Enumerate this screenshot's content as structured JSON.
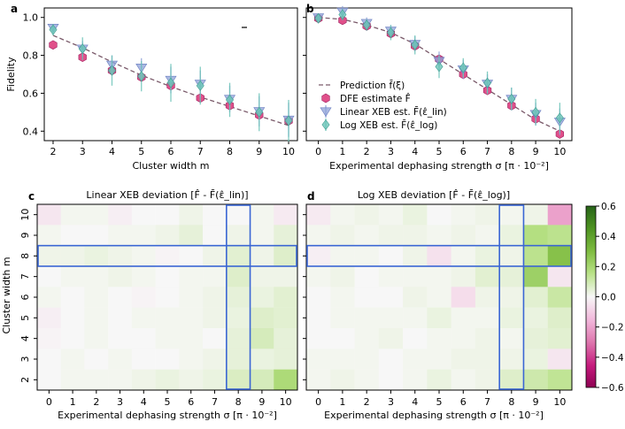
{
  "chart_data": [
    {
      "panel": "a",
      "type": "scatter",
      "xlabel": "Cluster width m",
      "ylabel": "Fidelity",
      "xticks": [
        "2",
        "3",
        "4",
        "5",
        "6",
        "7",
        "8",
        "9",
        "10"
      ],
      "yticks": [
        "0.4",
        "0.6",
        "0.8",
        "1.0"
      ],
      "xlim": [
        1.7,
        10.3
      ],
      "ylim": [
        0.35,
        1.05
      ],
      "x": [
        2,
        3,
        4,
        5,
        6,
        7,
        8,
        9,
        10
      ],
      "series": [
        {
          "name": "Prediction f̄(ξ)",
          "kind": "line",
          "values": [
            0.905,
            0.84,
            0.765,
            0.695,
            0.635,
            0.58,
            0.53,
            0.48,
            0.43
          ],
          "color": "#7a5a6a"
        },
        {
          "name": "DFE estimate F̂",
          "kind": "hexagon",
          "values": [
            0.855,
            0.79,
            0.72,
            0.685,
            0.64,
            0.575,
            0.535,
            0.485,
            0.455
          ],
          "color": "#e0508a"
        },
        {
          "name": "Linear XEB est. F̄(ε̂_lin)",
          "kind": "triangle",
          "values": [
            0.945,
            0.835,
            0.75,
            0.735,
            0.67,
            0.65,
            0.57,
            0.505,
            0.46
          ],
          "err": [
            0.02,
            0.04,
            0.05,
            0.05,
            0.07,
            0.07,
            0.07,
            0.08,
            0.09
          ],
          "color": "#8ea2d8"
        },
        {
          "name": "Log XEB est. F̄(ε̂_log)",
          "kind": "diamond",
          "values": [
            0.935,
            0.835,
            0.72,
            0.69,
            0.655,
            0.64,
            0.565,
            0.5,
            0.455
          ],
          "err": [
            0.03,
            0.06,
            0.08,
            0.08,
            0.1,
            0.1,
            0.09,
            0.1,
            0.11
          ],
          "color": "#6cc4b8"
        }
      ]
    },
    {
      "panel": "b",
      "type": "scatter",
      "xlabel": "Experimental dephasing strength σ [π · 10⁻²]",
      "ylabel": "",
      "xticks": [
        "0",
        "1",
        "2",
        "3",
        "4",
        "5",
        "6",
        "7",
        "8",
        "9",
        "10"
      ],
      "yticks": [
        "0.4",
        "0.6",
        "0.8",
        "1.0"
      ],
      "xlim": [
        -0.5,
        10.5
      ],
      "ylim": [
        0.35,
        1.05
      ],
      "x": [
        0,
        1,
        2,
        3,
        4,
        5,
        6,
        7,
        8,
        9,
        10
      ],
      "series": [
        {
          "name": "Prediction f̄(ξ)",
          "kind": "line",
          "values": [
            1.0,
            0.99,
            0.96,
            0.92,
            0.86,
            0.78,
            0.7,
            0.62,
            0.54,
            0.46,
            0.4
          ],
          "color": "#7a5a6a"
        },
        {
          "name": "DFE estimate F̂",
          "kind": "hexagon",
          "values": [
            0.995,
            0.985,
            0.955,
            0.915,
            0.85,
            0.78,
            0.7,
            0.615,
            0.535,
            0.465,
            0.385
          ],
          "color": "#e0508a"
        },
        {
          "name": "Linear XEB est. F̄(ε̂_lin)",
          "kind": "triangle",
          "values": [
            1.0,
            1.03,
            0.97,
            0.93,
            0.86,
            0.77,
            0.725,
            0.65,
            0.57,
            0.49,
            0.45
          ],
          "err": [
            0.02,
            0.03,
            0.03,
            0.03,
            0.04,
            0.05,
            0.05,
            0.05,
            0.06,
            0.06,
            0.07
          ],
          "color": "#8ea2d8"
        },
        {
          "name": "Log XEB est. F̄(ε̂_log)",
          "kind": "diamond",
          "values": [
            0.995,
            1.015,
            0.96,
            0.92,
            0.855,
            0.74,
            0.735,
            0.655,
            0.57,
            0.5,
            0.47
          ],
          "err": [
            0.02,
            0.03,
            0.03,
            0.04,
            0.05,
            0.06,
            0.05,
            0.06,
            0.06,
            0.07,
            0.08
          ],
          "color": "#6cc4b8"
        }
      ]
    },
    {
      "panel": "c",
      "type": "heatmap",
      "title": "Linear XEB deviation [F̂ - F̄(ε̂_lin)]",
      "xlabel": "Experimental dephasing strength σ [π · 10⁻²]",
      "ylabel": "Cluster width m",
      "xticks": [
        "0",
        "1",
        "2",
        "3",
        "4",
        "5",
        "6",
        "7",
        "8",
        "9",
        "10"
      ],
      "yticks": [
        "2",
        "3",
        "4",
        "5",
        "6",
        "7",
        "8",
        "9",
        "10"
      ],
      "rows_top_to_bottom": [
        "10",
        "9",
        "8",
        "7",
        "6",
        "5",
        "4",
        "3",
        "2"
      ],
      "values": [
        [
          -0.04,
          0.01,
          0.01,
          -0.02,
          0.0,
          0.0,
          0.02,
          0.0,
          0.0,
          0.01,
          -0.03
        ],
        [
          0.01,
          0.0,
          0.0,
          0.01,
          0.01,
          0.02,
          0.04,
          0.0,
          0.02,
          0.01,
          0.04
        ],
        [
          0.02,
          0.02,
          0.03,
          0.02,
          0.01,
          -0.01,
          0.0,
          0.02,
          0.05,
          0.02,
          0.06
        ],
        [
          0.0,
          0.01,
          0.01,
          0.02,
          0.01,
          0.0,
          0.01,
          0.01,
          0.06,
          0.02,
          0.02
        ],
        [
          0.01,
          0.0,
          0.01,
          0.0,
          -0.01,
          0.0,
          0.01,
          0.02,
          0.04,
          0.03,
          0.05
        ],
        [
          -0.02,
          0.0,
          0.01,
          0.0,
          0.01,
          0.01,
          0.01,
          0.02,
          0.03,
          0.06,
          0.05
        ],
        [
          -0.01,
          0.0,
          0.01,
          0.0,
          0.0,
          0.01,
          0.01,
          0.0,
          0.04,
          0.08,
          0.04
        ],
        [
          0.0,
          0.01,
          0.0,
          0.01,
          0.0,
          0.0,
          0.01,
          0.02,
          0.04,
          0.03,
          0.04
        ],
        [
          0.0,
          0.01,
          0.01,
          0.01,
          0.02,
          0.03,
          0.02,
          0.03,
          0.07,
          0.08,
          0.18
        ]
      ],
      "highlight_row": "8",
      "highlight_col": "8"
    },
    {
      "panel": "d",
      "type": "heatmap",
      "title": "Log XEB deviation [F̂ - F̄(ε̂_log)]",
      "xlabel": "Experimental dephasing strength σ [π · 10⁻²]",
      "ylabel": "",
      "xticks": [
        "0",
        "1",
        "2",
        "3",
        "4",
        "5",
        "6",
        "7",
        "8",
        "9",
        "10"
      ],
      "yticks": [],
      "rows_top_to_bottom": [
        "10",
        "9",
        "8",
        "7",
        "6",
        "5",
        "4",
        "3",
        "2"
      ],
      "values": [
        [
          -0.03,
          0.01,
          0.02,
          0.01,
          0.03,
          0.0,
          0.01,
          0.02,
          0.01,
          0.02,
          -0.2
        ],
        [
          0.01,
          0.02,
          0.01,
          0.02,
          0.02,
          0.01,
          0.02,
          0.01,
          0.03,
          0.16,
          0.14
        ],
        [
          -0.02,
          0.01,
          0.01,
          0.0,
          0.02,
          -0.05,
          0.01,
          0.03,
          0.02,
          0.14,
          0.28
        ],
        [
          0.01,
          0.02,
          0.0,
          0.01,
          0.01,
          0.01,
          0.02,
          0.05,
          0.04,
          0.22,
          -0.04
        ],
        [
          0.0,
          0.01,
          0.0,
          0.0,
          0.02,
          0.01,
          -0.06,
          0.02,
          0.02,
          0.05,
          0.11
        ],
        [
          0.0,
          0.01,
          0.01,
          0.01,
          0.01,
          0.03,
          0.01,
          0.01,
          0.03,
          0.03,
          0.06
        ],
        [
          0.0,
          0.0,
          0.01,
          0.02,
          0.0,
          0.01,
          0.01,
          0.02,
          0.01,
          0.04,
          0.05
        ],
        [
          0.01,
          0.01,
          0.01,
          0.0,
          0.01,
          0.01,
          0.02,
          0.02,
          0.02,
          0.03,
          -0.04
        ],
        [
          0.01,
          0.02,
          0.01,
          0.0,
          0.01,
          0.03,
          0.01,
          0.02,
          0.06,
          0.1,
          0.13
        ]
      ],
      "highlight_row": "8",
      "highlight_col": "8"
    }
  ],
  "colorbar": {
    "ticks": [
      "0.6",
      "0.4",
      "0.2",
      "0.0",
      "−0.2",
      "−0.4",
      "−0.6"
    ],
    "range": [
      -0.6,
      0.6
    ],
    "colormap": "PiYG"
  },
  "panel_labels": [
    "a",
    "b",
    "c",
    "d"
  ],
  "highlight_color": "#3a66d4"
}
